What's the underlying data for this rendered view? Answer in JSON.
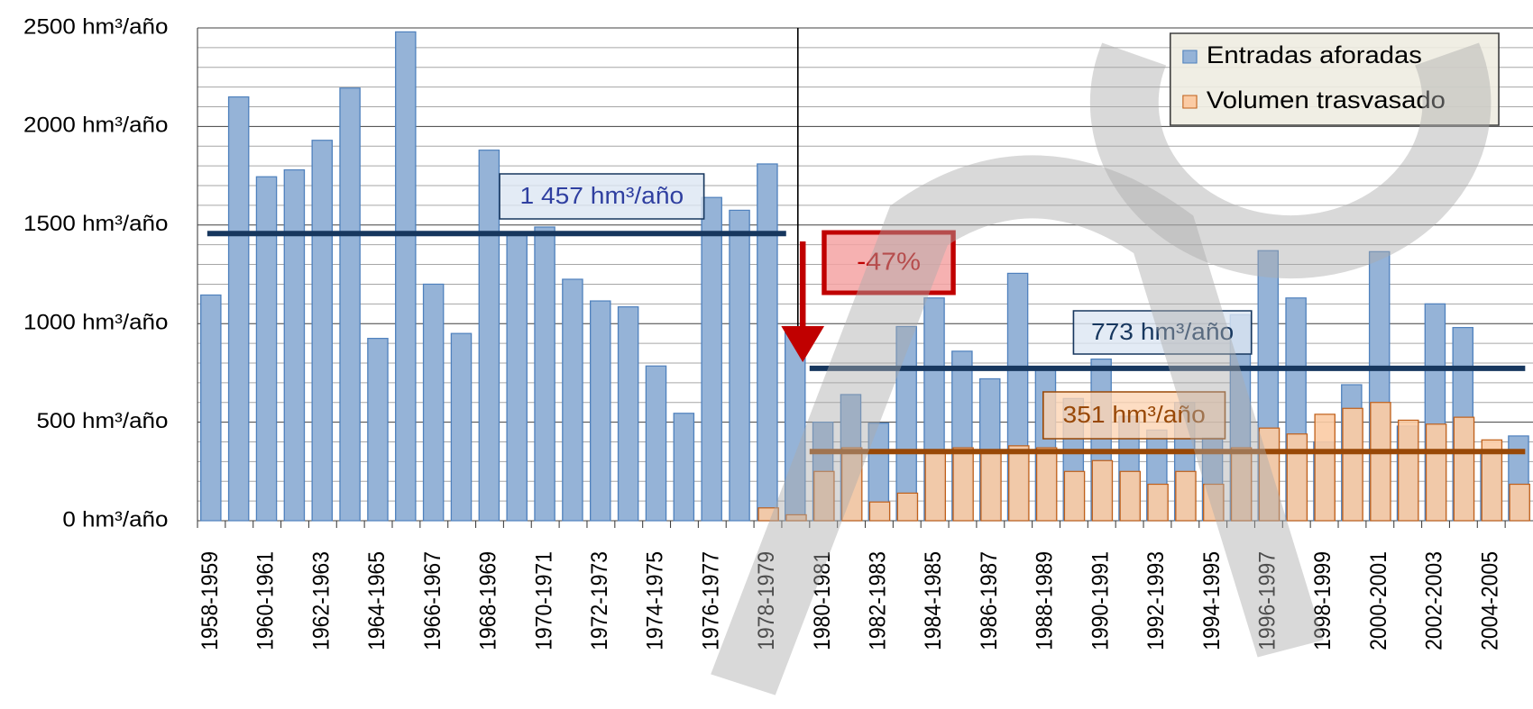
{
  "chart_data": {
    "type": "bar",
    "categories": [
      "1958-1959",
      null,
      "1960-1961",
      null,
      "1962-1963",
      null,
      "1964-1965",
      null,
      "1966-1967",
      null,
      "1968-1969",
      null,
      "1970-1971",
      null,
      "1972-1973",
      null,
      "1974-1975",
      null,
      "1976-1977",
      null,
      "1978-1979",
      null,
      "1980-1981",
      null,
      "1982-1983",
      null,
      "1984-1985",
      null,
      "1986-1987",
      null,
      "1988-1989",
      null,
      "1990-1991",
      null,
      "1992-1993",
      null,
      "1994-1995",
      null,
      "1996-1997",
      null,
      "1998-1999",
      null,
      "2000-2001",
      null,
      "2002-2003",
      null,
      "2004-2005",
      null
    ],
    "series": [
      {
        "name": "Entradas aforadas",
        "color": "#95b3d7",
        "edge": "#4f81bd",
        "values": [
          1145,
          2150,
          1745,
          1780,
          1930,
          2195,
          925,
          2480,
          1200,
          950,
          1880,
          1450,
          1490,
          1225,
          1115,
          1085,
          785,
          545,
          1640,
          1575,
          1810,
          985,
          500,
          640,
          495,
          985,
          1130,
          860,
          720,
          1255,
          780,
          620,
          820,
          530,
          460,
          600,
          420,
          1045,
          1370,
          1130,
          400,
          690,
          1365,
          480,
          1100,
          980,
          360,
          430
        ]
      },
      {
        "name": "Volumen trasvasado",
        "color": "#fbcba4",
        "edge": "#c0601a",
        "values": [
          null,
          null,
          null,
          null,
          null,
          null,
          null,
          null,
          null,
          null,
          null,
          null,
          null,
          null,
          null,
          null,
          null,
          null,
          null,
          null,
          65,
          30,
          250,
          370,
          95,
          140,
          360,
          370,
          360,
          380,
          370,
          250,
          305,
          250,
          185,
          250,
          185,
          370,
          470,
          440,
          540,
          570,
          600,
          510,
          490,
          525,
          410,
          185
        ]
      }
    ],
    "ylim": [
      0,
      2500
    ],
    "yticks": [
      {
        "value": 0,
        "label": "0 hm³/año"
      },
      {
        "value": 500,
        "label": "500 hm³/año"
      },
      {
        "value": 1000,
        "label": "1000 hm³/año"
      },
      {
        "value": 1500,
        "label": "1500 hm³/año"
      },
      {
        "value": 2000,
        "label": "2000 hm³/año"
      },
      {
        "value": 2500,
        "label": "2500 hm³/año"
      }
    ],
    "minor_yticks": [
      100,
      200,
      300,
      400,
      600,
      700,
      800,
      900,
      1100,
      1200,
      1300,
      1400,
      1600,
      1700,
      1800,
      1900,
      2100,
      2200,
      2300,
      2400
    ],
    "grid": true,
    "legend": "upper right",
    "divider": "1980-1981",
    "reference_lines": [
      {
        "value": 1457,
        "label": "1 457 hm³/año",
        "color": "#17375e",
        "text_color": "#2f3fa0",
        "box_fill": "#dce6f2",
        "side": "before"
      },
      {
        "value": 773,
        "label": "773 hm³/año",
        "color": "#17375e",
        "text_color": "#17375e",
        "box_fill": "#dce6f2",
        "side": "after"
      },
      {
        "value": 351,
        "label": "351 hm³/año",
        "color": "#984807",
        "text_color": "#984807",
        "box_fill": "#fcd5b4",
        "side": "after"
      }
    ],
    "change_label": "-47%"
  }
}
